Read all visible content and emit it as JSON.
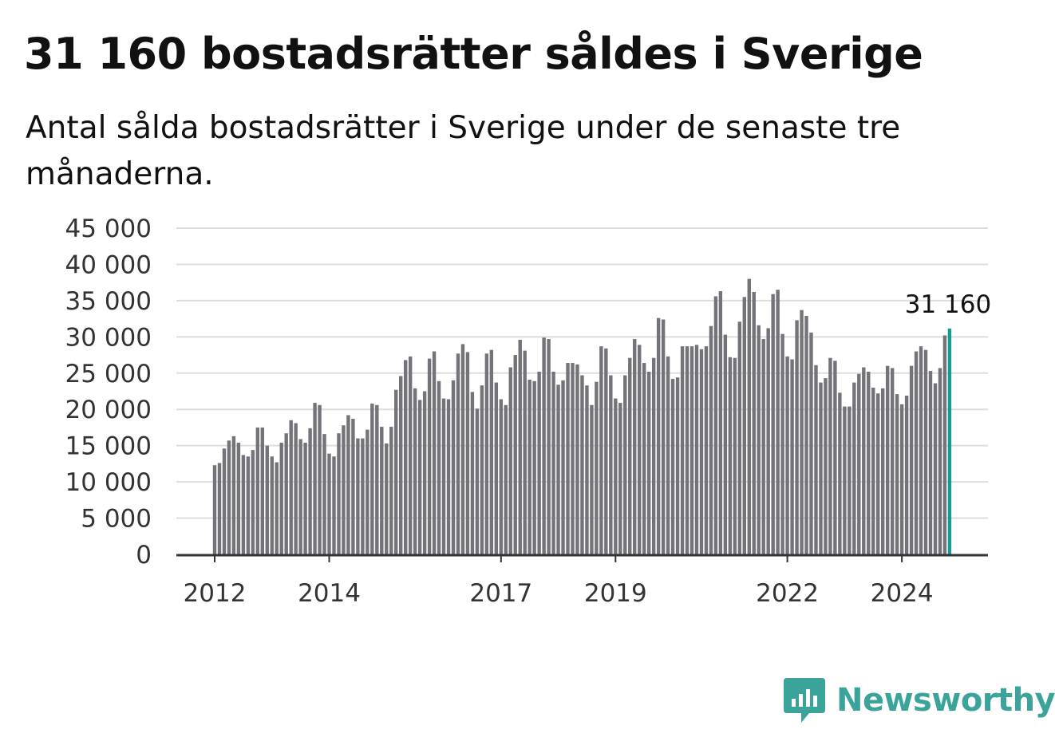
{
  "chart_data": {
    "type": "bar",
    "title": "31 160 bostadsrätter såldes i Sverige",
    "subtitle": "Antal sålda bostadsrätter i Sverige under de senaste tre månaderna.",
    "xlabel": "",
    "ylabel": "",
    "ylim": [
      0,
      45000
    ],
    "y_ticks": [
      0,
      5000,
      10000,
      15000,
      20000,
      25000,
      30000,
      35000,
      40000,
      45000
    ],
    "y_tick_labels": [
      "0",
      "5 000",
      "10 000",
      "15 000",
      "20 000",
      "25 000",
      "30 000",
      "35 000",
      "40 000",
      "45 000"
    ],
    "x_tick_labels": [
      "2012",
      "2014",
      "2017",
      "2019",
      "2022",
      "2024"
    ],
    "grid": true,
    "annotation": "31 160",
    "colors": {
      "bar": "#74737a",
      "highlight": "#1a9a94",
      "grid": "#dddddd",
      "axis": "#333333"
    },
    "start_month": "2012-01",
    "values": [
      12300,
      12600,
      14600,
      15700,
      16300,
      15400,
      13700,
      13500,
      14400,
      17500,
      17500,
      15000,
      13500,
      12700,
      15400,
      16700,
      18500,
      18100,
      15900,
      15400,
      17400,
      20900,
      20600,
      16600,
      13900,
      13500,
      16700,
      17800,
      19200,
      18700,
      16000,
      16000,
      17200,
      20800,
      20600,
      17600,
      15300,
      17600,
      22700,
      24600,
      26800,
      27300,
      22900,
      21300,
      22500,
      27000,
      28000,
      23900,
      21500,
      21400,
      24000,
      27700,
      29000,
      27900,
      22400,
      20100,
      23300,
      27700,
      28200,
      23700,
      21400,
      20600,
      25800,
      27500,
      29600,
      28100,
      24100,
      23900,
      25200,
      29900,
      29700,
      25200,
      23400,
      24000,
      26400,
      26400,
      26200,
      24700,
      23300,
      20600,
      23800,
      28700,
      28400,
      24700,
      21500,
      20900,
      24700,
      27100,
      29700,
      28900,
      26400,
      25200,
      27100,
      32600,
      32400,
      27300,
      24200,
      24400,
      28700,
      28700,
      28700,
      28900,
      28300,
      28700,
      31500,
      35600,
      36300,
      30300,
      27200,
      27100,
      32100,
      35500,
      38000,
      36200,
      31600,
      29700,
      31200,
      35900,
      36500,
      30400,
      27300,
      26900,
      32300,
      33700,
      32900,
      30600,
      26100,
      23700,
      24300,
      27100,
      26700,
      22300,
      20400,
      20400,
      23700,
      24900,
      25800,
      25200,
      23000,
      22200,
      22900,
      26000,
      25700,
      22100,
      20700,
      21900,
      26000,
      28000,
      28700,
      28200,
      25300,
      23600,
      25700,
      30200,
      31160
    ]
  },
  "logo": {
    "name": "Newsworthy",
    "icon": "bar-chart-badge-icon"
  }
}
